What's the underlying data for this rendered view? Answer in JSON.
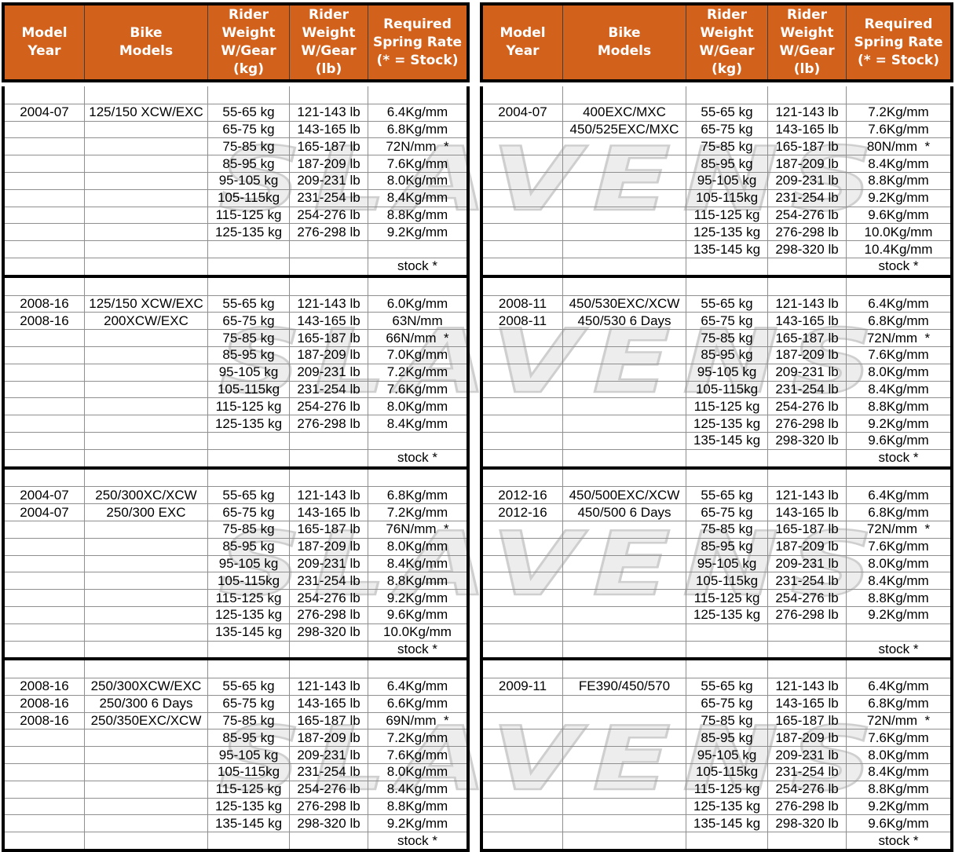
{
  "watermark": {
    "text": "SLAVENS"
  },
  "colors": {
    "header_bg": "#d2611c",
    "header_text": "#ffffff",
    "grid_line": "#8f8f8f",
    "block_border": "#000000",
    "watermark_fill": "#ededed",
    "watermark_outline": "#cfcfcf"
  },
  "header": {
    "columns": [
      "Model\nYear",
      "Bike\nModels",
      "Rider\nWeight\nW/Gear\n(kg)",
      "Rider\nWeight\nW/Gear\n(lb)",
      "Required\nSpring Rate\n(* = Stock)"
    ]
  },
  "tables": [
    {
      "name": "left",
      "blocks": [
        {
          "rows": [
            [
              "",
              "",
              "",
              "",
              ""
            ],
            [
              "2004-07",
              "125/150 XCW/EXC",
              "55-65 kg",
              "121-143 lb",
              "6.4Kg/mm"
            ],
            [
              "",
              "",
              "65-75 kg",
              "143-165 lb",
              "6.8Kg/mm"
            ],
            [
              "",
              "",
              "75-85 kg",
              "165-187 lb",
              "72N/mm  *"
            ],
            [
              "",
              "",
              "85-95 kg",
              "187-209 lb",
              "7.6Kg/mm"
            ],
            [
              "",
              "",
              "95-105 kg",
              "209-231 lb",
              "8.0Kg/mm"
            ],
            [
              "",
              "",
              "105-115kg",
              "231-254 lb",
              "8.4Kg/mm"
            ],
            [
              "",
              "",
              "115-125 kg",
              "254-276 lb",
              "8.8Kg/mm"
            ],
            [
              "",
              "",
              "125-135 kg",
              "276-298 lb",
              "9.2Kg/mm"
            ],
            [
              "",
              "",
              "",
              "",
              ""
            ],
            [
              "",
              "",
              "",
              "",
              "stock *"
            ]
          ]
        },
        {
          "rows": [
            [
              "",
              "",
              "",
              "",
              ""
            ],
            [
              "2008-16",
              "125/150 XCW/EXC",
              "55-65 kg",
              "121-143 lb",
              "6.0Kg/mm"
            ],
            [
              "2008-16",
              "200XCW/EXC",
              "65-75 kg",
              "143-165 lb",
              "63N/mm"
            ],
            [
              "",
              "",
              "75-85 kg",
              "165-187 lb",
              "66N/mm  *"
            ],
            [
              "",
              "",
              "85-95 kg",
              "187-209 lb",
              "7.0Kg/mm"
            ],
            [
              "",
              "",
              "95-105 kg",
              "209-231 lb",
              "7.2Kg/mm"
            ],
            [
              "",
              "",
              "105-115kg",
              "231-254 lb",
              "7.6Kg/mm"
            ],
            [
              "",
              "",
              "115-125 kg",
              "254-276 lb",
              "8.0Kg/mm"
            ],
            [
              "",
              "",
              "125-135 kg",
              "276-298 lb",
              "8.4Kg/mm"
            ],
            [
              "",
              "",
              "",
              "",
              ""
            ],
            [
              "",
              "",
              "",
              "",
              "stock *"
            ]
          ]
        },
        {
          "rows": [
            [
              "",
              "",
              "",
              "",
              ""
            ],
            [
              "2004-07",
              "250/300XC/XCW",
              "55-65 kg",
              "121-143 lb",
              "6.8Kg/mm"
            ],
            [
              "2004-07",
              "250/300 EXC",
              "65-75 kg",
              "143-165 lb",
              "7.2Kg/mm"
            ],
            [
              "",
              "",
              "75-85 kg",
              "165-187 lb",
              "76N/mm  *"
            ],
            [
              "",
              "",
              "85-95 kg",
              "187-209 lb",
              "8.0Kg/mm"
            ],
            [
              "",
              "",
              "95-105 kg",
              "209-231 lb",
              "8.4Kg/mm"
            ],
            [
              "",
              "",
              "105-115kg",
              "231-254 lb",
              "8.8Kg/mm"
            ],
            [
              "",
              "",
              "115-125 kg",
              "254-276 lb",
              "9.2Kg/mm"
            ],
            [
              "",
              "",
              "125-135 kg",
              "276-298 lb",
              "9.6Kg/mm"
            ],
            [
              "",
              "",
              "135-145 kg",
              "298-320 lb",
              "10.0Kg/mm"
            ],
            [
              "",
              "",
              "",
              "",
              "stock *"
            ]
          ]
        },
        {
          "rows": [
            [
              "",
              "",
              "",
              "",
              ""
            ],
            [
              "2008-16",
              "250/300XCW/EXC",
              "55-65 kg",
              "121-143 lb",
              "6.4Kg/mm"
            ],
            [
              "2008-16",
              "250/300 6 Days",
              "65-75 kg",
              "143-165 lb",
              "6.6Kg/mm"
            ],
            [
              "2008-16",
              "250/350EXC/XCW",
              "75-85 kg",
              "165-187 lb",
              "69N/mm  *"
            ],
            [
              "",
              "",
              "85-95 kg",
              "187-209 lb",
              "7.2Kg/mm"
            ],
            [
              "",
              "",
              "95-105 kg",
              "209-231 lb",
              "7.6Kg/mm"
            ],
            [
              "",
              "",
              "105-115kg",
              "231-254 lb",
              "8.0Kg/mm"
            ],
            [
              "",
              "",
              "115-125 kg",
              "254-276 lb",
              "8.4Kg/mm"
            ],
            [
              "",
              "",
              "125-135 kg",
              "276-298 lb",
              "8.8Kg/mm"
            ],
            [
              "",
              "",
              "135-145 kg",
              "298-320 lb",
              "9.2Kg/mm"
            ],
            [
              "",
              "",
              "",
              "",
              "stock *"
            ]
          ]
        }
      ]
    },
    {
      "name": "right",
      "blocks": [
        {
          "rows": [
            [
              "",
              "",
              "",
              "",
              ""
            ],
            [
              "2004-07",
              "400EXC/MXC",
              "55-65 kg",
              "121-143 lb",
              "7.2Kg/mm"
            ],
            [
              "",
              "450/525EXC/MXC",
              "65-75 kg",
              "143-165 lb",
              "7.6Kg/mm"
            ],
            [
              "",
              "",
              "75-85 kg",
              "165-187 lb",
              "80N/mm  *"
            ],
            [
              "",
              "",
              "85-95 kg",
              "187-209 lb",
              "8.4Kg/mm"
            ],
            [
              "",
              "",
              "95-105 kg",
              "209-231 lb",
              "8.8Kg/mm"
            ],
            [
              "",
              "",
              "105-115kg",
              "231-254 lb",
              "9.2Kg/mm"
            ],
            [
              "",
              "",
              "115-125 kg",
              "254-276 lb",
              "9.6Kg/mm"
            ],
            [
              "",
              "",
              "125-135 kg",
              "276-298 lb",
              "10.0Kg/mm"
            ],
            [
              "",
              "",
              "135-145 kg",
              "298-320 lb",
              "10.4Kg/mm"
            ],
            [
              "",
              "",
              "",
              "",
              "stock *"
            ]
          ]
        },
        {
          "rows": [
            [
              "",
              "",
              "",
              "",
              ""
            ],
            [
              "2008-11",
              "450/530EXC/XCW",
              "55-65 kg",
              "121-143 lb",
              "6.4Kg/mm"
            ],
            [
              "2008-11",
              "450/530 6 Days",
              "65-75 kg",
              "143-165 lb",
              "6.8Kg/mm"
            ],
            [
              "",
              "",
              "75-85 kg",
              "165-187 lb",
              "72N/mm  *"
            ],
            [
              "",
              "",
              "85-95 kg",
              "187-209 lb",
              "7.6Kg/mm"
            ],
            [
              "",
              "",
              "95-105 kg",
              "209-231 lb",
              "8.0Kg/mm"
            ],
            [
              "",
              "",
              "105-115kg",
              "231-254 lb",
              "8.4Kg/mm"
            ],
            [
              "",
              "",
              "115-125 kg",
              "254-276 lb",
              "8.8Kg/mm"
            ],
            [
              "",
              "",
              "125-135 kg",
              "276-298 lb",
              "9.2Kg/mm"
            ],
            [
              "",
              "",
              "135-145 kg",
              "298-320 lb",
              "9.6Kg/mm"
            ],
            [
              "",
              "",
              "",
              "",
              "stock *"
            ]
          ]
        },
        {
          "rows": [
            [
              "",
              "",
              "",
              "",
              ""
            ],
            [
              "2012-16",
              "450/500EXC/XCW",
              "55-65 kg",
              "121-143 lb",
              "6.4Kg/mm"
            ],
            [
              "2012-16",
              "450/500 6 Days",
              "65-75 kg",
              "143-165 lb",
              "6.8Kg/mm"
            ],
            [
              "",
              "",
              "75-85 kg",
              "165-187 lb",
              "72N/mm  *"
            ],
            [
              "",
              "",
              "85-95 kg",
              "187-209 lb",
              "7.6Kg/mm"
            ],
            [
              "",
              "",
              "95-105 kg",
              "209-231 lb",
              "8.0Kg/mm"
            ],
            [
              "",
              "",
              "105-115kg",
              "231-254 lb",
              "8.4Kg/mm"
            ],
            [
              "",
              "",
              "115-125 kg",
              "254-276 lb",
              "8.8Kg/mm"
            ],
            [
              "",
              "",
              "125-135 kg",
              "276-298 lb",
              "9.2Kg/mm"
            ],
            [
              "",
              "",
              "",
              "",
              ""
            ],
            [
              "",
              "",
              "",
              "",
              "stock *"
            ]
          ]
        },
        {
          "rows": [
            [
              "",
              "",
              "",
              "",
              ""
            ],
            [
              "2009-11",
              "FE390/450/570",
              "55-65 kg",
              "121-143 lb",
              "6.4Kg/mm"
            ],
            [
              "",
              "",
              "65-75 kg",
              "143-165 lb",
              "6.8Kg/mm"
            ],
            [
              "",
              "",
              "75-85 kg",
              "165-187 lb",
              "72N/mm  *"
            ],
            [
              "",
              "",
              "85-95 kg",
              "187-209 lb",
              "7.6Kg/mm"
            ],
            [
              "",
              "",
              "95-105 kg",
              "209-231 lb",
              "8.0Kg/mm"
            ],
            [
              "",
              "",
              "105-115kg",
              "231-254 lb",
              "8.4Kg/mm"
            ],
            [
              "",
              "",
              "115-125 kg",
              "254-276 lb",
              "8.8Kg/mm"
            ],
            [
              "",
              "",
              "125-135 kg",
              "276-298 lb",
              "9.2Kg/mm"
            ],
            [
              "",
              "",
              "135-145 kg",
              "298-320 lb",
              "9.6Kg/mm"
            ],
            [
              "",
              "",
              "",
              "",
              "stock *"
            ]
          ]
        }
      ]
    }
  ]
}
